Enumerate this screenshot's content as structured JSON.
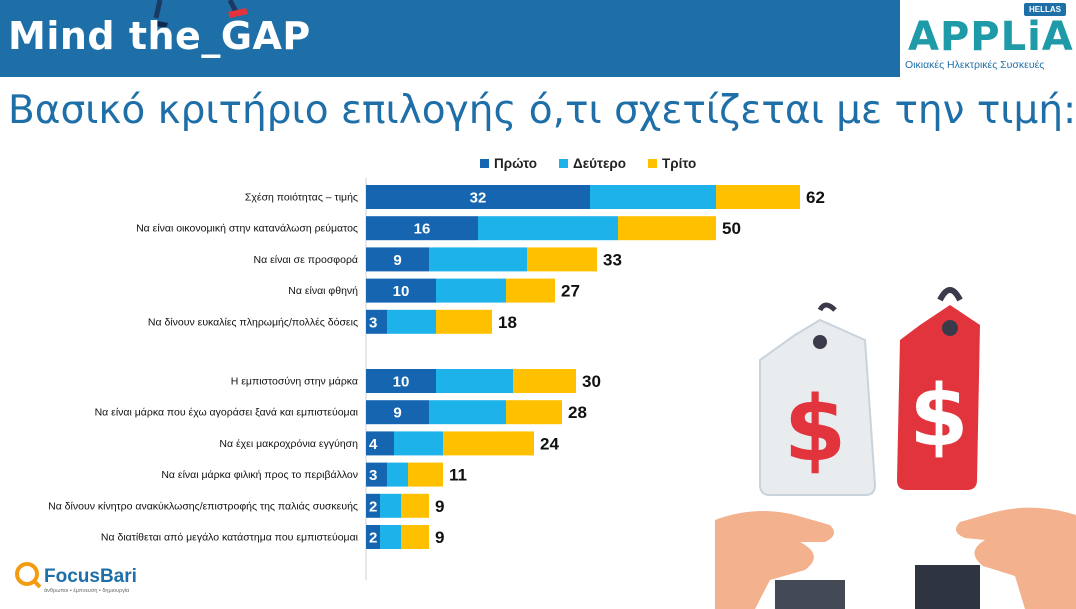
{
  "header": {
    "brand": "Mind the_GAP"
  },
  "logo": {
    "badge": "HELLAS",
    "name": "APPLiA",
    "tagline": "Οικιακές Ηλεκτρικές Συσκευές"
  },
  "title": "Βασικό κριτήριο επιλογής ό,τι σχετίζεται με την τιμή:",
  "footer_logo": {
    "name": "FocusBari",
    "tagline": "άνθρωποι • έμπνευση • δημιουργία"
  },
  "colors": {
    "first": "#1565b0",
    "second": "#1eb2ea",
    "third": "#ffc000",
    "header_bg": "#1e6fa8"
  },
  "chart_data": {
    "type": "bar",
    "orientation": "horizontal",
    "stacked": true,
    "legend_position": "top",
    "groups": [
      {
        "categories": [
          "Σχέση ποιότητας – τιμής",
          "Να είναι οικονομική στην κατανάλωση ρεύματος",
          "Να είναι σε προσφορά",
          "Να είναι φθηνή",
          "Να δίνουν ευκαλίες πληρωμής/πολλές δόσεις"
        ]
      },
      {
        "categories": [
          "Η εμπιστοσύνη στην μάρκα",
          "Να είναι μάρκα που έχω αγοράσει ξανά και εμπιστεύομαι",
          "Να έχει μακροχρόνια εγγύηση",
          "Να είναι μάρκα φιλική προς το περιβάλλον",
          "Να δίνουν κίνητρο ανακύκλωσης/επιστροφής της παλιάς συσκευής",
          "Να διατίθεται από μεγάλο κατάστημα που εμπιστεύομαι"
        ]
      }
    ],
    "series": [
      {
        "name": "Πρώτο",
        "values": [
          32,
          16,
          9,
          10,
          3,
          10,
          9,
          4,
          3,
          2,
          2
        ]
      },
      {
        "name": "Δεύτερο",
        "values": [
          18,
          20,
          14,
          10,
          7,
          11,
          11,
          7,
          3,
          3,
          3
        ]
      },
      {
        "name": "Τρίτο",
        "values": [
          12,
          14,
          10,
          7,
          8,
          9,
          8,
          13,
          5,
          4,
          4
        ]
      }
    ],
    "totals": [
      62,
      50,
      33,
      27,
      18,
      30,
      28,
      24,
      11,
      9,
      9
    ]
  }
}
